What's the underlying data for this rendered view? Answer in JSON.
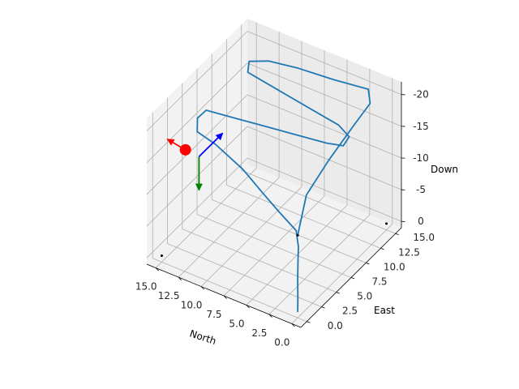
{
  "chart_data": {
    "type": "line3d",
    "title": "",
    "axes": {
      "x": {
        "label": "North",
        "ticks": [
          "0.0",
          "2.5",
          "5.0",
          "7.5",
          "10.0",
          "12.5",
          "15.0"
        ],
        "lim": [
          -1,
          16
        ]
      },
      "y": {
        "label": "East",
        "ticks": [
          "0.0",
          "2.5",
          "5.0",
          "7.5",
          "10.0",
          "12.5",
          "15.0"
        ],
        "lim": [
          -1,
          16
        ]
      },
      "z": {
        "label": "Down",
        "ticks": [
          "0",
          "-5",
          "-10",
          "-15",
          "-20"
        ],
        "lim": [
          1,
          -22
        ],
        "inverted": true
      }
    },
    "grid": true,
    "series": [
      {
        "type": "line",
        "color": "#1f77b4",
        "points": [
          [
            0,
            0,
            0
          ],
          [
            0.05,
            0.1,
            -2
          ],
          [
            0.1,
            0.15,
            -5
          ],
          [
            0.1,
            0.2,
            -8
          ],
          [
            0.05,
            0.2,
            -10
          ],
          [
            0.5,
            0.5,
            -12
          ],
          [
            3,
            1.5,
            -12.5
          ],
          [
            6,
            3,
            -12.7
          ],
          [
            9,
            4.5,
            -13
          ],
          [
            13,
            6,
            -13.2
          ],
          [
            15,
            6,
            -14
          ],
          [
            15.3,
            6.5,
            -15.5
          ],
          [
            15,
            7.5,
            -16
          ],
          [
            12,
            8,
            -16
          ],
          [
            9,
            8.5,
            -16
          ],
          [
            6,
            9,
            -16
          ],
          [
            3,
            9.5,
            -16
          ],
          [
            1.5,
            10,
            -16
          ],
          [
            1.5,
            11,
            -16.5
          ],
          [
            3,
            11.5,
            -17
          ],
          [
            6,
            12,
            -17
          ],
          [
            9,
            12.5,
            -17
          ],
          [
            12,
            13,
            -17
          ],
          [
            14,
            13,
            -17.5
          ],
          [
            14.5,
            14,
            -18
          ],
          [
            13,
            15,
            -18
          ],
          [
            10,
            15.2,
            -18.5
          ],
          [
            6,
            15.2,
            -19
          ],
          [
            2,
            15,
            -20
          ],
          [
            0.5,
            13,
            -20.5
          ],
          [
            0.3,
            10,
            -20
          ],
          [
            0.5,
            6,
            -18
          ],
          [
            1,
            3,
            -15
          ],
          [
            0,
            0,
            -12
          ]
        ]
      }
    ],
    "markers": [
      {
        "name": "red-position-marker",
        "type": "point",
        "color": "#ff0000",
        "point": [
          15,
          4,
          -13
        ]
      },
      {
        "name": "origin-marker",
        "type": "point",
        "color": "#000000",
        "point": [
          0,
          0,
          -12
        ]
      },
      {
        "name": "corner-marker-a",
        "type": "point",
        "color": "#000000",
        "point": [
          15,
          0,
          0
        ]
      },
      {
        "name": "corner-marker-b",
        "type": "point",
        "color": "#000000",
        "point": [
          0,
          15,
          0
        ]
      }
    ],
    "vectors": [
      {
        "name": "red-heading-arrow",
        "color": "#ff0000",
        "from": [
          15,
          4,
          -13
        ],
        "to": [
          17,
          4,
          -13.5
        ]
      },
      {
        "name": "green-down-arrow",
        "color": "#008000",
        "from": [
          13.5,
          4,
          -12.8
        ],
        "to": [
          13.5,
          4,
          -7.5
        ]
      },
      {
        "name": "blue-east-arrow",
        "color": "#0000ff",
        "from": [
          13.5,
          4,
          -12.8
        ],
        "to": [
          13.5,
          8,
          -12.8
        ]
      }
    ]
  }
}
